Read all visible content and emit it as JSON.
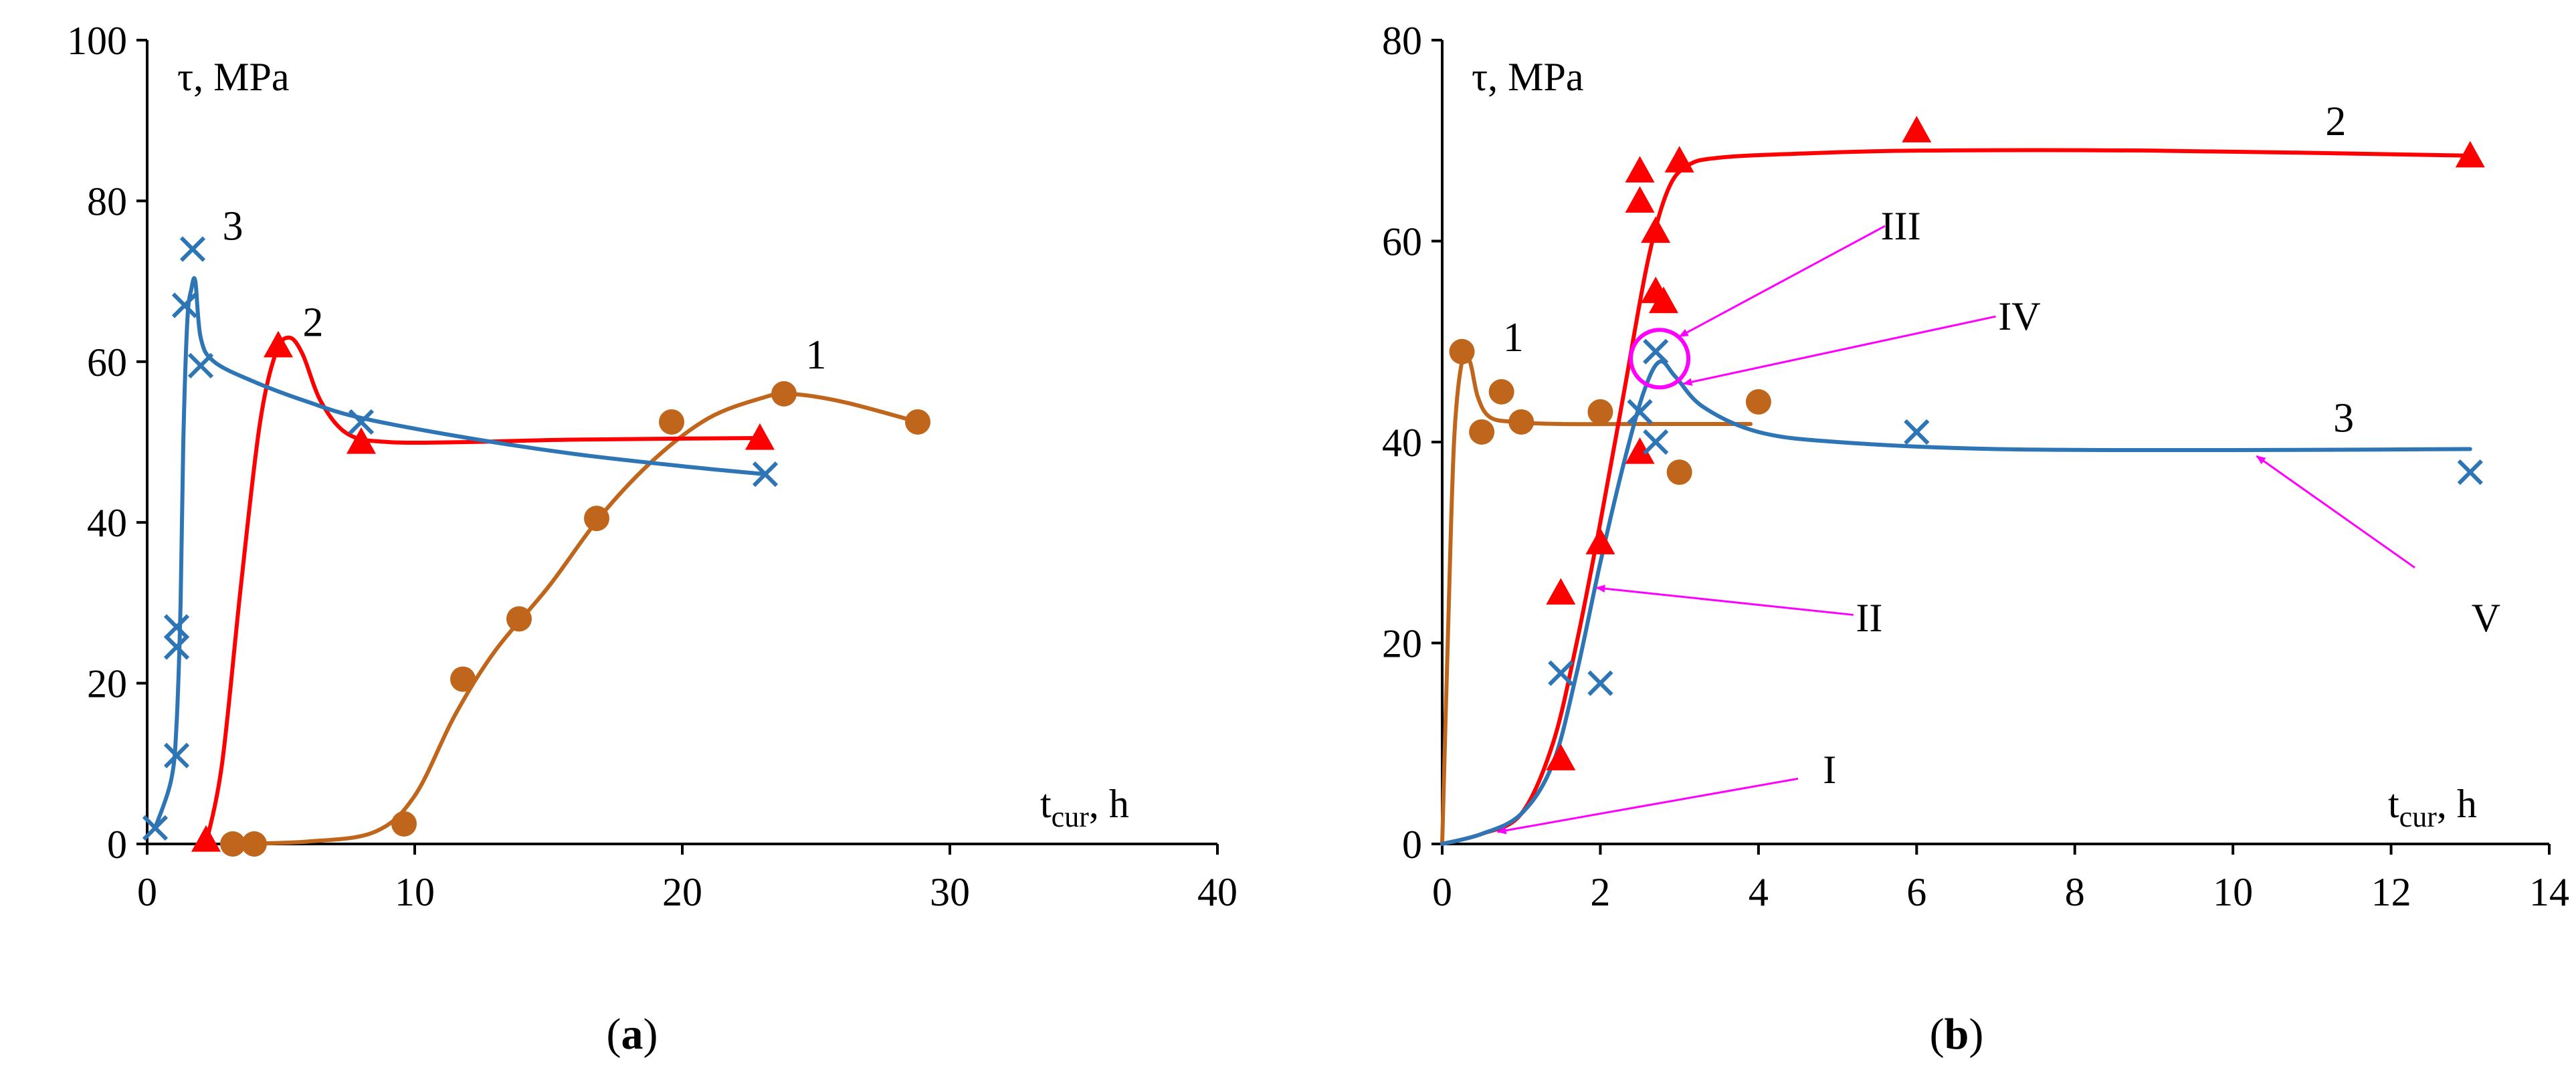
{
  "chart_data": [
    {
      "type": "scatter",
      "panel_caption": {
        "open": "(",
        "letter": "a",
        "close": ")"
      },
      "ylabel": "τ, MPa",
      "xlabel": {
        "main": "t",
        "sub": "cur",
        "unit": ", h"
      },
      "xlim": [
        0,
        40
      ],
      "ylim": [
        0,
        100
      ],
      "x_ticks": [
        "0",
        "10",
        "20",
        "30",
        "40"
      ],
      "y_ticks": [
        "0",
        "20",
        "40",
        "60",
        "80",
        "100"
      ],
      "grid": false,
      "series": [
        {
          "name": "1",
          "marker": "circle",
          "color": "#C0651C",
          "points": [
            [
              3.2,
              0
            ],
            [
              4.0,
              0
            ],
            [
              9.6,
              2.5
            ],
            [
              11.8,
              20.5
            ],
            [
              13.9,
              28
            ],
            [
              16.8,
              40.5
            ],
            [
              19.6,
              52.5
            ],
            [
              23.8,
              56
            ],
            [
              28.8,
              52.5
            ]
          ],
          "curve": [
            [
              3.2,
              0
            ],
            [
              6,
              0.3
            ],
            [
              8.5,
              1.5
            ],
            [
              10,
              6
            ],
            [
              11.5,
              16
            ],
            [
              13,
              24
            ],
            [
              15,
              32
            ],
            [
              17,
              41
            ],
            [
              19,
              48
            ],
            [
              21,
              53
            ],
            [
              23,
              55.5
            ],
            [
              24,
              56
            ],
            [
              26,
              55
            ],
            [
              28.8,
              52.5
            ]
          ]
        },
        {
          "name": "2",
          "marker": "triangle",
          "color": "#FF0000",
          "points": [
            [
              2.2,
              0.5
            ],
            [
              4.9,
              62
            ],
            [
              8.0,
              50
            ],
            [
              22.9,
              50.5
            ]
          ],
          "curve": [
            [
              2.2,
              0
            ],
            [
              2.8,
              10
            ],
            [
              3.5,
              32
            ],
            [
              4.2,
              52
            ],
            [
              4.8,
              61
            ],
            [
              5.3,
              63
            ],
            [
              5.8,
              61
            ],
            [
              6.5,
              55
            ],
            [
              7.5,
              51
            ],
            [
              9,
              50
            ],
            [
              12,
              50
            ],
            [
              16,
              50.3
            ],
            [
              22.9,
              50.5
            ]
          ]
        },
        {
          "name": "3",
          "marker": "cross",
          "color": "#2E75B6",
          "points": [
            [
              0.3,
              2
            ],
            [
              1.1,
              11
            ],
            [
              1.1,
              24.5
            ],
            [
              1.1,
              27
            ],
            [
              1.4,
              67
            ],
            [
              1.7,
              74
            ],
            [
              2.0,
              59.5
            ],
            [
              8.0,
              52.5
            ],
            [
              23.1,
              46
            ]
          ],
          "curve": [
            [
              0.3,
              2
            ],
            [
              0.9,
              8
            ],
            [
              1.1,
              15
            ],
            [
              1.25,
              30
            ],
            [
              1.35,
              50
            ],
            [
              1.5,
              65
            ],
            [
              1.65,
              69
            ],
            [
              1.8,
              70
            ],
            [
              2.0,
              63
            ],
            [
              2.5,
              60
            ],
            [
              4,
              57.5
            ],
            [
              6,
              55
            ],
            [
              8,
              53
            ],
            [
              12,
              50.5
            ],
            [
              16,
              48.5
            ],
            [
              20,
              47
            ],
            [
              23.1,
              46
            ]
          ]
        }
      ],
      "curve_labels": [
        {
          "text": "1",
          "x": 25,
          "y": 61
        },
        {
          "text": "2",
          "x": 6.2,
          "y": 65
        },
        {
          "text": "3",
          "x": 3.2,
          "y": 77
        }
      ]
    },
    {
      "type": "scatter",
      "panel_caption": {
        "open": "(",
        "letter": "b",
        "close": ")"
      },
      "ylabel": "τ, MPa",
      "xlabel": {
        "main": "t",
        "sub": "cur",
        "unit": ", h"
      },
      "xlim": [
        0,
        14
      ],
      "ylim": [
        0,
        80
      ],
      "x_ticks": [
        "0",
        "2",
        "4",
        "6",
        "8",
        "10",
        "12",
        "14"
      ],
      "y_ticks": [
        "0",
        "20",
        "40",
        "60",
        "80"
      ],
      "grid": false,
      "series": [
        {
          "name": "1",
          "marker": "circle",
          "color": "#C0651C",
          "points": [
            [
              0.25,
              49
            ],
            [
              0.5,
              41
            ],
            [
              0.75,
              45
            ],
            [
              1.0,
              42
            ],
            [
              2.0,
              43
            ],
            [
              3.0,
              37
            ],
            [
              4.0,
              44
            ]
          ],
          "curve": [
            [
              0,
              0
            ],
            [
              0.07,
              20
            ],
            [
              0.15,
              40
            ],
            [
              0.25,
              48
            ],
            [
              0.35,
              48
            ],
            [
              0.45,
              44.5
            ],
            [
              0.6,
              42.5
            ],
            [
              0.9,
              42
            ],
            [
              1.5,
              41.8
            ],
            [
              2.5,
              41.8
            ],
            [
              3.9,
              41.8
            ]
          ]
        },
        {
          "name": "2",
          "marker": "triangle",
          "color": "#FF0000",
          "points": [
            [
              1.5,
              8.5
            ],
            [
              1.5,
              25
            ],
            [
              2.0,
              30
            ],
            [
              2.5,
              39
            ],
            [
              2.5,
              64
            ],
            [
              2.5,
              67
            ],
            [
              2.7,
              61
            ],
            [
              2.7,
              55
            ],
            [
              2.8,
              54
            ],
            [
              3.0,
              68
            ],
            [
              6.0,
              71
            ],
            [
              13.0,
              68.5
            ]
          ],
          "curve": [
            [
              0,
              0
            ],
            [
              0.5,
              1
            ],
            [
              1.0,
              3
            ],
            [
              1.4,
              10
            ],
            [
              1.7,
              20
            ],
            [
              2.0,
              32
            ],
            [
              2.3,
              45
            ],
            [
              2.6,
              58
            ],
            [
              2.85,
              65
            ],
            [
              3.1,
              67.5
            ],
            [
              3.5,
              68.3
            ],
            [
              4.5,
              68.7
            ],
            [
              6,
              69
            ],
            [
              9,
              69
            ],
            [
              13,
              68.5
            ]
          ]
        },
        {
          "name": "3",
          "marker": "cross",
          "color": "#2E75B6",
          "points": [
            [
              1.5,
              17
            ],
            [
              2.0,
              16
            ],
            [
              2.5,
              43
            ],
            [
              2.7,
              40
            ],
            [
              2.7,
              49
            ],
            [
              6.0,
              41
            ],
            [
              13.0,
              37
            ]
          ],
          "curve": [
            [
              0,
              0
            ],
            [
              0.5,
              1
            ],
            [
              1.0,
              3
            ],
            [
              1.4,
              8
            ],
            [
              1.7,
              17
            ],
            [
              2.0,
              28
            ],
            [
              2.3,
              38
            ],
            [
              2.55,
              45
            ],
            [
              2.75,
              48
            ],
            [
              2.95,
              46.5
            ],
            [
              3.3,
              43.5
            ],
            [
              4,
              41
            ],
            [
              5,
              40
            ],
            [
              7,
              39.3
            ],
            [
              10,
              39.2
            ],
            [
              13,
              39.3
            ]
          ]
        }
      ],
      "curve_labels": [
        {
          "text": "1",
          "x": 0.9,
          "y": 50.5
        },
        {
          "text": "2",
          "x": 11.3,
          "y": 72
        },
        {
          "text": "3",
          "x": 11.4,
          "y": 42.5
        }
      ],
      "annotation_color": "#FF00FF",
      "annotations": [
        {
          "text": "I",
          "label_x": 4.9,
          "label_y": 7.4,
          "arrow_from": [
            4.5,
            6.5
          ],
          "arrow_to": [
            0.7,
            1.2
          ]
        },
        {
          "text": "II",
          "label_x": 5.4,
          "label_y": 22.5,
          "arrow_from": [
            5.2,
            22.8
          ],
          "arrow_to": [
            1.95,
            25.5
          ]
        },
        {
          "text": "III",
          "label_x": 5.8,
          "label_y": 61.5,
          "arrow_from": [
            5.6,
            61.5
          ],
          "arrow_to": [
            3.0,
            50.5
          ]
        },
        {
          "text": "IV",
          "label_x": 7.3,
          "label_y": 52.5,
          "arrow_from": [
            7.0,
            52.5
          ],
          "arrow_to": [
            3.05,
            45.8
          ]
        },
        {
          "text": "V",
          "label_x": 13.2,
          "label_y": 22.5,
          "arrow_from": [
            12.3,
            27.5
          ],
          "arrow_to": [
            10.3,
            38.6
          ]
        }
      ],
      "highlight_circle": {
        "x": 2.75,
        "y": 48.3
      }
    }
  ]
}
